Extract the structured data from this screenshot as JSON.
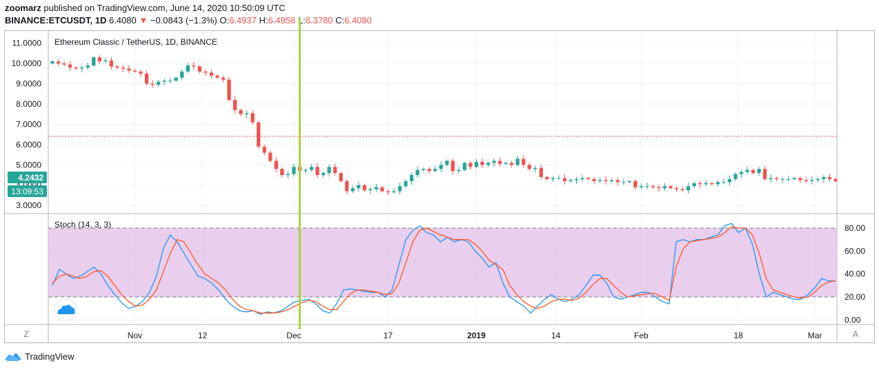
{
  "header": {
    "line1_user": "zoomarz",
    "line1_rest": "published on TradingView.com, June 14, 2020 10:50:09 UTC",
    "symbol": "BINANCE:ETCUSDT, 1D",
    "price": "6.4080",
    "arrow": "▼",
    "change": "−0.0843 (−1.3%)",
    "o_label": "O:",
    "o_value": "6.4937",
    "h_label": "H:",
    "h_value": "6.4958",
    "l_label": "L:",
    "l_value": "6.3780",
    "c_label": "C:",
    "c_value": "6.4080"
  },
  "footer": {
    "brand": "TradingView",
    "left_btn": "Z",
    "right_btn": "A"
  },
  "colors": {
    "up": "#26a69a",
    "down": "#ef5350",
    "stoch_k": "#2196f3",
    "stoch_d": "#ff5722",
    "band": "#e1bee7",
    "cursor": "#aad233",
    "price_label": "#26a69a"
  },
  "chart_data": [
    {
      "type": "candlestick",
      "title": "Ethereum Classic / TetherUS, 1D, BINANCE",
      "ylim": [
        2.6,
        11.6
      ],
      "yticks": [
        "11.0000",
        "10.0000",
        "9.0000",
        "8.0000",
        "7.0000",
        "6.0000",
        "5.0000",
        "4.0000",
        "3.0000"
      ],
      "ytick_values": [
        11,
        10,
        9,
        8,
        7,
        6,
        5,
        4,
        3
      ],
      "current_price_label": "4.2432",
      "countdown_label": "13:09:53",
      "horizontal_line": 6.408,
      "cursor_index": 42,
      "closes": [
        10.1,
        10.0,
        9.95,
        9.8,
        9.75,
        9.8,
        9.9,
        10.3,
        10.1,
        10.15,
        9.85,
        9.8,
        9.75,
        9.65,
        9.6,
        9.5,
        9.0,
        8.95,
        9.1,
        9.15,
        9.15,
        9.3,
        9.6,
        9.9,
        9.85,
        9.6,
        9.55,
        9.4,
        9.3,
        9.2,
        8.2,
        7.7,
        7.5,
        7.55,
        7.1,
        5.9,
        5.6,
        5.2,
        4.8,
        4.5,
        4.55,
        4.9,
        4.7,
        4.75,
        4.9,
        4.5,
        4.6,
        4.9,
        4.6,
        4.2,
        3.7,
        3.85,
        4.0,
        3.75,
        3.8,
        3.9,
        3.7,
        3.65,
        3.7,
        3.95,
        4.2,
        4.5,
        4.75,
        4.8,
        4.7,
        4.8,
        5.0,
        5.2,
        4.7,
        4.75,
        5.1,
        4.9,
        5.15,
        5.0,
        5.1,
        5.2,
        5.05,
        5.1,
        5.0,
        5.3,
        5.0,
        4.8,
        4.85,
        4.4,
        4.3,
        4.35,
        4.35,
        4.2,
        4.25,
        4.3,
        4.35,
        4.3,
        4.2,
        4.25,
        4.2,
        4.25,
        4.15,
        4.15,
        4.2,
        3.9,
        3.95,
        3.95,
        3.9,
        3.85,
        3.95,
        3.85,
        3.8,
        3.75,
        3.95,
        4.1,
        4.05,
        4.1,
        4.05,
        4.15,
        4.15,
        4.3,
        4.55,
        4.65,
        4.75,
        4.6,
        4.8,
        4.3,
        4.35,
        4.3,
        4.3,
        4.3,
        4.35,
        4.25,
        4.2,
        4.25,
        4.3,
        4.4,
        4.3,
        4.2
      ]
    },
    {
      "type": "line",
      "title": "Stoch (14, 3, 3)",
      "ylim": [
        -4,
        92
      ],
      "yticks": [
        "80.00",
        "60.00",
        "40.00",
        "20.00",
        "0.00"
      ],
      "ytick_values": [
        80,
        60,
        40,
        20,
        0
      ],
      "band": [
        20,
        80
      ],
      "x_labels": [
        "Nov",
        "12",
        "Dec",
        "17",
        "2019",
        "14",
        "Feb",
        "18",
        "Mar"
      ],
      "x_label_indices": [
        14,
        25.5,
        41,
        57,
        72,
        85.5,
        100,
        116.5,
        129.5
      ],
      "series": [
        {
          "name": "%K",
          "values": [
            30,
            44,
            40,
            36,
            38,
            42,
            46,
            40,
            30,
            22,
            15,
            10,
            12,
            16,
            24,
            38,
            62,
            74,
            68,
            58,
            48,
            38,
            36,
            32,
            26,
            18,
            12,
            8,
            7,
            8,
            5,
            7,
            6,
            8,
            12,
            16,
            17,
            18,
            14,
            8,
            6,
            14,
            26,
            27,
            26,
            25,
            24,
            24,
            20,
            26,
            48,
            70,
            78,
            82,
            76,
            74,
            68,
            72,
            68,
            70,
            68,
            60,
            54,
            46,
            50,
            32,
            20,
            16,
            12,
            6,
            12,
            18,
            22,
            18,
            16,
            18,
            22,
            30,
            39,
            39,
            32,
            20,
            18,
            20,
            22,
            24,
            24,
            20,
            16,
            14,
            68,
            70,
            68,
            70,
            70,
            72,
            74,
            82,
            84,
            76,
            80,
            66,
            40,
            20,
            24,
            22,
            20,
            18,
            18,
            22,
            28,
            36,
            34,
            34
          ]
        },
        {
          "name": "%D",
          "values": [
            32,
            38,
            40,
            38,
            36,
            38,
            42,
            43,
            38,
            30,
            22,
            16,
            12,
            13,
            18,
            26,
            42,
            58,
            70,
            68,
            58,
            48,
            40,
            36,
            32,
            26,
            18,
            12,
            9,
            8,
            6,
            6,
            6,
            7,
            9,
            12,
            15,
            17,
            16,
            12,
            9,
            9,
            16,
            23,
            26,
            26,
            25,
            24,
            22,
            23,
            32,
            50,
            68,
            78,
            80,
            77,
            74,
            72,
            70,
            70,
            70,
            66,
            60,
            52,
            48,
            44,
            30,
            22,
            16,
            12,
            10,
            12,
            16,
            18,
            18,
            17,
            19,
            24,
            31,
            36,
            36,
            30,
            24,
            20,
            21,
            22,
            23,
            23,
            20,
            17,
            46,
            62,
            68,
            69,
            70,
            71,
            72,
            76,
            81,
            80,
            80,
            74,
            58,
            36,
            26,
            24,
            22,
            20,
            19,
            20,
            24,
            30,
            33,
            34
          ]
        }
      ]
    }
  ]
}
